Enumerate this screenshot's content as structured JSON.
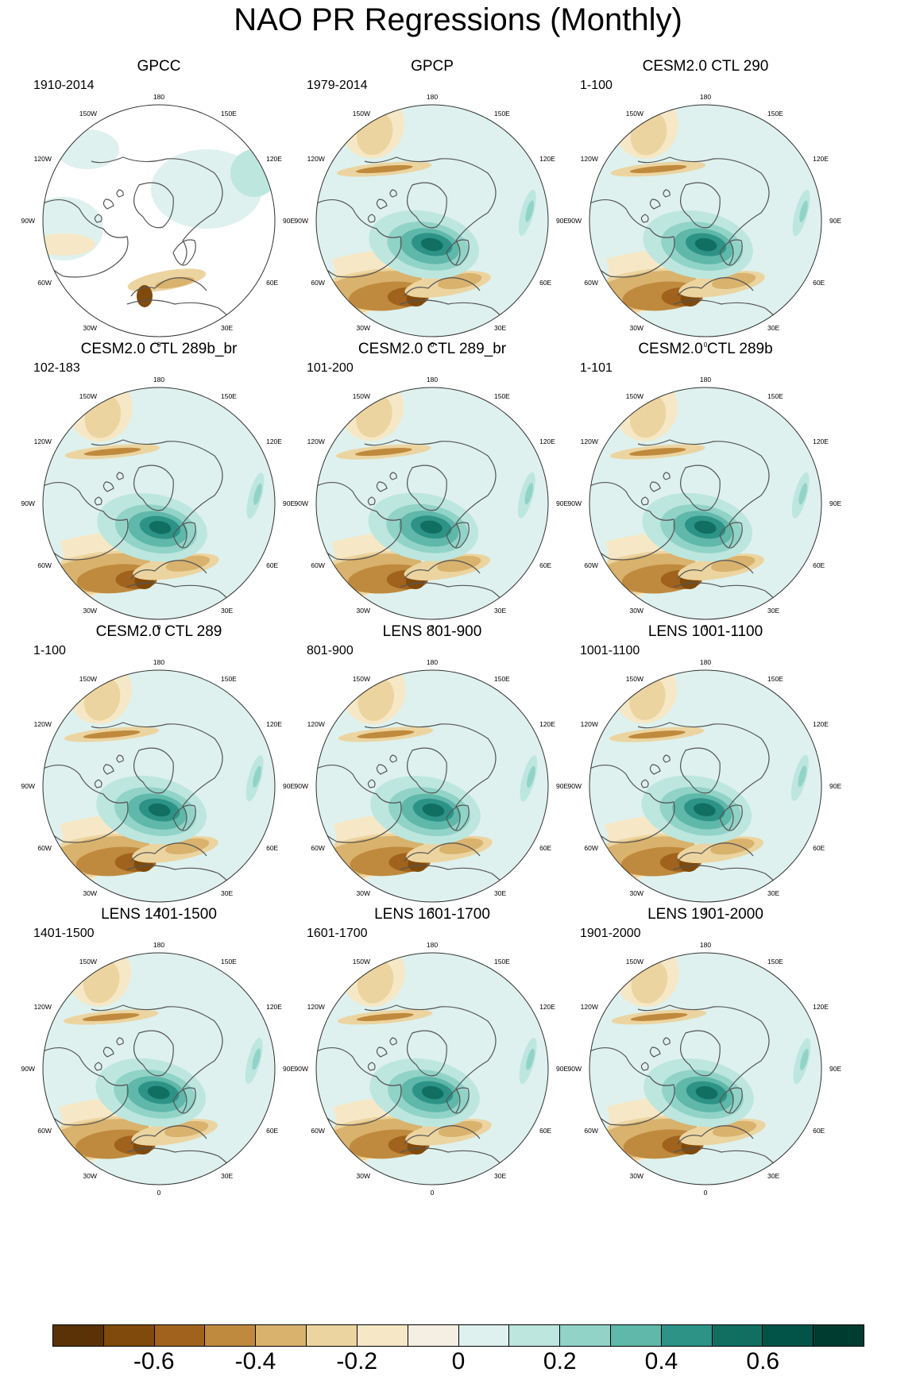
{
  "title": "NAO PR Regressions (Monthly)",
  "panels": [
    {
      "title": "GPCC",
      "period": "1910-2014",
      "variant": "gpcc"
    },
    {
      "title": "GPCP",
      "period": "1979-2014",
      "variant": "model"
    },
    {
      "title": "CESM2.0 CTL 290",
      "period": "1-100",
      "variant": "model"
    },
    {
      "title": "CESM2.0 CTL 289b_br",
      "period": "102-183",
      "variant": "model"
    },
    {
      "title": "CESM2.0 CTL 289_br",
      "period": "101-200",
      "variant": "model"
    },
    {
      "title": "CESM2.0 CTL 289b",
      "period": "1-101",
      "variant": "model"
    },
    {
      "title": "CESM2.0 CTL 289",
      "period": "1-100",
      "variant": "model"
    },
    {
      "title": "LENS 801-900",
      "period": "801-900",
      "variant": "model"
    },
    {
      "title": "LENS 1001-1100",
      "period": "1001-1100",
      "variant": "model"
    },
    {
      "title": "LENS 1401-1500",
      "period": "1401-1500",
      "variant": "model"
    },
    {
      "title": "LENS 1601-1700",
      "period": "1601-1700",
      "variant": "model"
    },
    {
      "title": "LENS 1901-2000",
      "period": "1901-2000",
      "variant": "model"
    }
  ],
  "longitude_labels": [
    "180",
    "150E",
    "120E",
    "90E",
    "60E",
    "30E",
    "0",
    "30W",
    "60W",
    "90W",
    "120W",
    "150W"
  ],
  "colorbar": {
    "colors": [
      "#5a3205",
      "#7f4a0c",
      "#a0621c",
      "#c08a3e",
      "#d9b26d",
      "#ecd4a0",
      "#f6e8c6",
      "#f4efe2",
      "#def1ee",
      "#bde6df",
      "#92d3c8",
      "#5fb8aa",
      "#2d9386",
      "#116f62",
      "#035448",
      "#003c30"
    ],
    "labels": [
      {
        "text": "-0.6",
        "boundary": 2
      },
      {
        "text": "-0.4",
        "boundary": 4
      },
      {
        "text": "-0.2",
        "boundary": 6
      },
      {
        "text": "0",
        "boundary": 8
      },
      {
        "text": "0.2",
        "boundary": 10
      },
      {
        "text": "0.4",
        "boundary": 12
      },
      {
        "text": "0.6",
        "boundary": 14
      }
    ]
  }
}
